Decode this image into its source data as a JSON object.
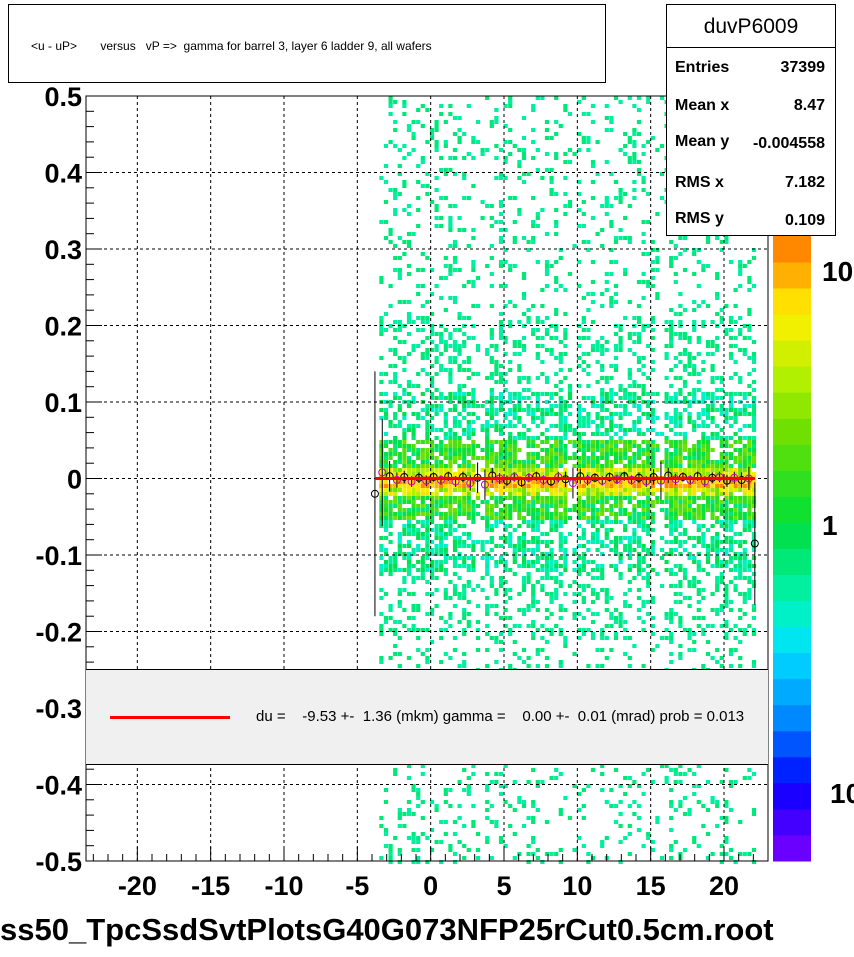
{
  "title": "<u - uP>       versus   vP =>  gamma for barrel 3, layer 6 ladder 9, all wafers",
  "stats": {
    "name": "duvP6009",
    "rows": [
      {
        "label": "Entries",
        "value": "37399"
      },
      {
        "label": "Mean x",
        "value": "8.47"
      },
      {
        "label": "Mean y",
        "value": "-0.004558"
      },
      {
        "label": "RMS x",
        "value": "7.182"
      },
      {
        "label": "RMS y",
        "value": "0.109"
      }
    ]
  },
  "legend": {
    "text": "du =    -9.53 +-  1.36 (mkm) gamma =    0.00 +-  0.01 (mrad) prob = 0.013",
    "color": "#ff0000"
  },
  "file_label": "ss50_TpcSsdSvtPlotsG40G073NFP25rCut0.5cm.root",
  "chart_data": {
    "type": "heatmap",
    "xlim": [
      -23.5,
      23
    ],
    "ylim": [
      -0.5,
      0.5
    ],
    "xticks": [
      -20,
      -15,
      -10,
      -5,
      0,
      5,
      10,
      15,
      20
    ],
    "xtick_labels": [
      "-20",
      "-15",
      "-10",
      "-5",
      "0",
      "5",
      "10",
      "15",
      "20"
    ],
    "yticks": [
      -0.5,
      -0.4,
      -0.3,
      -0.2,
      -0.1,
      0,
      0.1,
      0.2,
      0.3,
      0.4,
      0.5
    ],
    "ytick_labels": [
      "-0.5",
      "-0.4",
      "-0.3",
      "-0.2",
      "-0.1",
      "0",
      "0.1",
      "0.2",
      "0.3",
      "0.4",
      "0.5"
    ],
    "grid": true,
    "data_x_range": [
      -3.5,
      22
    ],
    "band_center_y": 0,
    "gap_x": [
      3.2,
      9.5,
      15.5
    ],
    "colorbar": {
      "scale": "log",
      "labels": [
        "10",
        "1",
        "10"
      ],
      "colors": [
        "#6a00ff",
        "#4400ff",
        "#1a00ff",
        "#0022ff",
        "#0055ff",
        "#0088ff",
        "#00aaff",
        "#00ccff",
        "#00e6f0",
        "#00f0c8",
        "#00f0a0",
        "#00e878",
        "#00e050",
        "#10e030",
        "#30e020",
        "#50e010",
        "#70e000",
        "#90e800",
        "#b0f000",
        "#d0f000",
        "#f0f000",
        "#ffe000",
        "#ffb000",
        "#ff8800"
      ]
    },
    "profile_points": {
      "x": [
        -3.8,
        -3.3,
        -2.8,
        -2.3,
        -1.8,
        -1.3,
        -0.8,
        -0.3,
        0.2,
        0.7,
        1.2,
        1.7,
        2.2,
        2.7,
        3.2,
        3.7,
        4.2,
        4.7,
        5.2,
        5.7,
        6.2,
        6.7,
        7.2,
        7.7,
        8.2,
        8.7,
        9.2,
        9.7,
        10.2,
        10.7,
        11.2,
        11.7,
        12.2,
        12.7,
        13.2,
        13.7,
        14.2,
        14.7,
        15.2,
        15.7,
        16.2,
        16.7,
        17.2,
        17.7,
        18.2,
        18.7,
        19.2,
        19.7,
        20.2,
        20.7,
        21.2,
        21.7,
        22.1
      ],
      "y": [
        -0.02,
        0.008,
        0.003,
        -0.002,
        0.002,
        -0.004,
        0.001,
        -0.003,
        0.002,
        -0.002,
        0.003,
        -0.004,
        0.002,
        -0.006,
        0.001,
        -0.008,
        0.004,
        0.0,
        -0.003,
        0.002,
        -0.005,
        0.001,
        0.003,
        -0.002,
        -0.004,
        0.002,
        -0.001,
        -0.006,
        0.003,
        -0.002,
        0.001,
        -0.003,
        0.002,
        -0.001,
        0.003,
        -0.002,
        0.001,
        -0.004,
        0.002,
        -0.003,
        0.004,
        -0.001,
        0.002,
        -0.002,
        0.003,
        -0.004,
        0.001,
        0.002,
        -0.003,
        0.001,
        -0.002,
        0.0,
        -0.085
      ],
      "err": [
        0.16,
        0.07,
        0.02,
        0.01,
        0.008,
        0.007,
        0.007,
        0.007,
        0.006,
        0.006,
        0.006,
        0.007,
        0.007,
        0.01,
        0.02,
        0.02,
        0.01,
        0.007,
        0.007,
        0.006,
        0.006,
        0.006,
        0.006,
        0.006,
        0.006,
        0.007,
        0.01,
        0.02,
        0.01,
        0.007,
        0.006,
        0.006,
        0.006,
        0.006,
        0.006,
        0.006,
        0.007,
        0.007,
        0.01,
        0.025,
        0.01,
        0.007,
        0.006,
        0.006,
        0.006,
        0.007,
        0.007,
        0.007,
        0.008,
        0.008,
        0.01,
        0.015,
        0.08
      ]
    },
    "fit_line": {
      "x": [
        -3.8,
        22.1
      ],
      "y": [
        0,
        0
      ]
    }
  }
}
